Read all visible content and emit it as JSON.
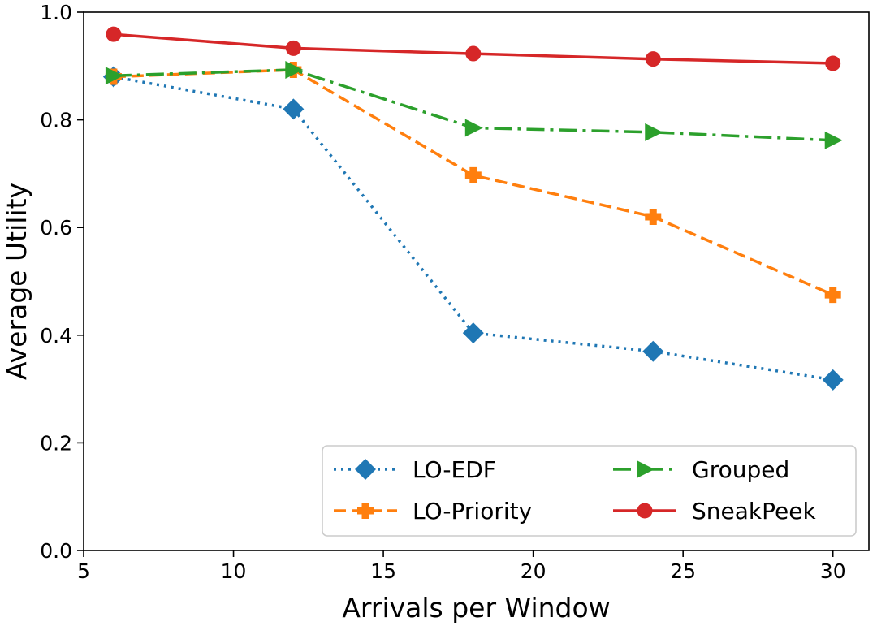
{
  "chart_data": {
    "type": "line",
    "title": "",
    "xlabel": "Arrivals per Window",
    "ylabel": "Average Utility",
    "xlim": [
      5,
      31.2
    ],
    "ylim": [
      0.0,
      1.0
    ],
    "xticks": [
      5,
      10,
      15,
      20,
      25,
      30
    ],
    "yticks": [
      0.0,
      0.2,
      0.4,
      0.6,
      0.8,
      1.0
    ],
    "xtick_labels": [
      "5",
      "10",
      "15",
      "20",
      "25",
      "30"
    ],
    "ytick_labels": [
      "0.0",
      "0.2",
      "0.4",
      "0.6",
      "0.8",
      "1.0"
    ],
    "grid": false,
    "legend_position": "lower-right",
    "x": [
      6,
      12,
      18,
      24,
      30
    ],
    "series": [
      {
        "name": "LO-EDF",
        "values": [
          0.88,
          0.82,
          0.404,
          0.37,
          0.317
        ],
        "color": "#1f77b4",
        "marker": "diamond",
        "linestyle": "dotted"
      },
      {
        "name": "LO-Priority",
        "values": [
          0.88,
          0.893,
          0.697,
          0.62,
          0.475
        ],
        "color": "#ff7f0e",
        "marker": "plus",
        "linestyle": "dashed"
      },
      {
        "name": "Grouped",
        "values": [
          0.882,
          0.893,
          0.785,
          0.777,
          0.762
        ],
        "color": "#2ca02c",
        "marker": "triangle-right",
        "linestyle": "dashdot"
      },
      {
        "name": "SneakPeek",
        "values": [
          0.959,
          0.933,
          0.923,
          0.913,
          0.905
        ],
        "color": "#d62728",
        "marker": "circle",
        "linestyle": "solid"
      }
    ]
  }
}
